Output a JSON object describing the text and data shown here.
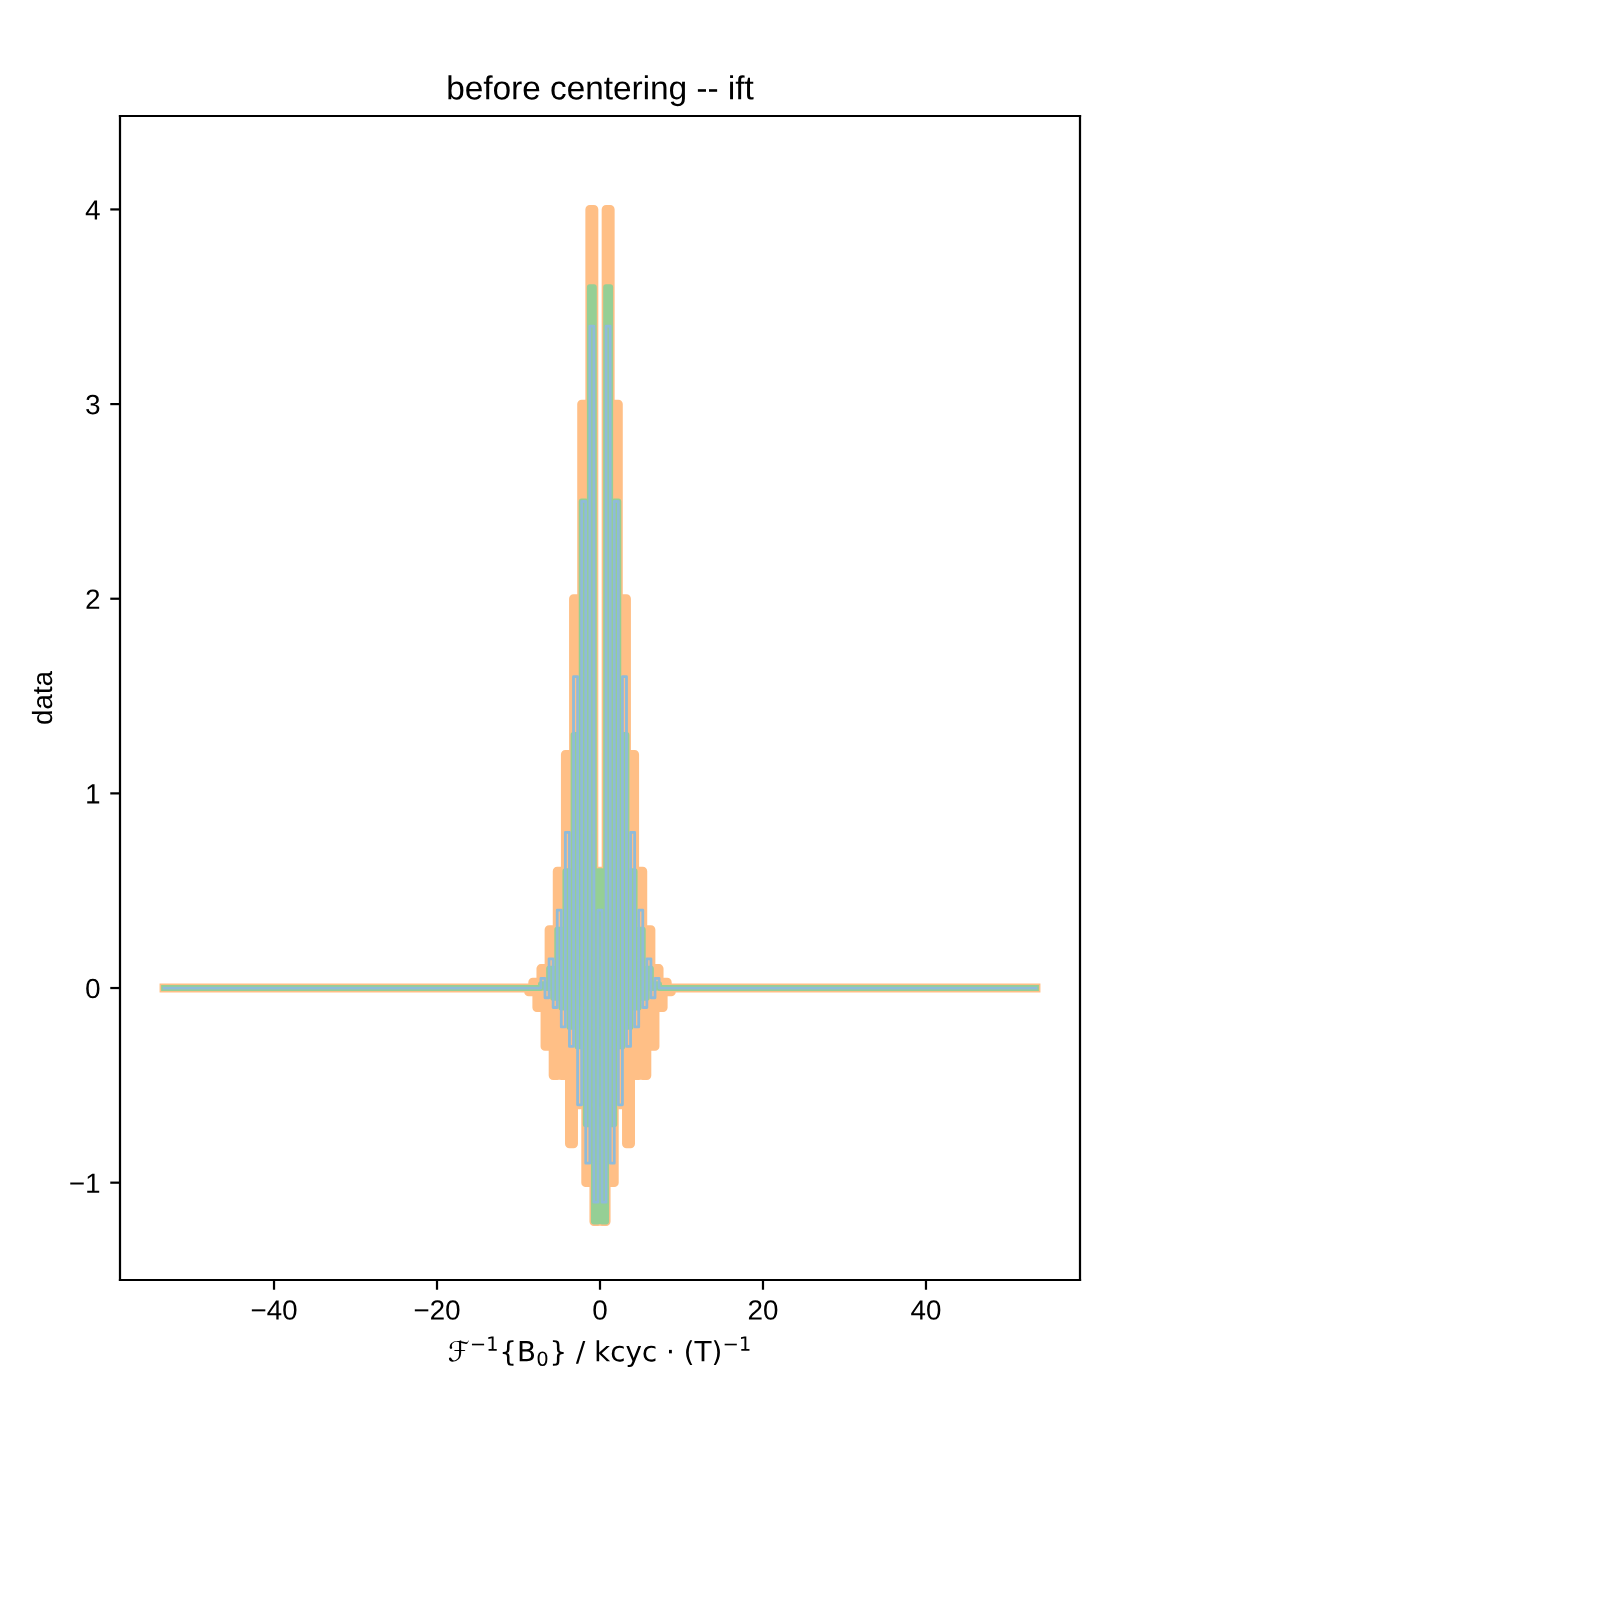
{
  "chart_data": {
    "type": "step",
    "title": "before centering -- ift",
    "xlabel": "ℱ$^{−1}${B$_{0}$} / kcyc · (T)$^{−1}$",
    "ylabel": "data",
    "x": [
      -53.5,
      -9,
      -8.5,
      -8,
      -7.5,
      -7,
      -6.5,
      -6,
      -5.5,
      -5,
      -4.5,
      -4,
      -3.5,
      -3,
      -2.5,
      -2,
      -1.5,
      -1,
      -0.5,
      0,
      0.5,
      1,
      1.5,
      2,
      2.5,
      3,
      3.5,
      4,
      4.5,
      5,
      5.5,
      6,
      6.5,
      7,
      7.5,
      8,
      8.5,
      9,
      53.5
    ],
    "series": [
      {
        "color": "#8fbbd9",
        "values": [
          0,
          0,
          0,
          0,
          0,
          0.05,
          -0.05,
          0.15,
          -0.1,
          0.4,
          -0.2,
          0.8,
          -0.3,
          1.6,
          -0.6,
          2.5,
          -0.9,
          3.4,
          -1.1,
          0.4,
          -1.1,
          3.4,
          -0.9,
          2.5,
          -0.6,
          1.6,
          -0.3,
          0.8,
          -0.2,
          0.4,
          -0.1,
          0.15,
          -0.05,
          0.05,
          0,
          0,
          0,
          0,
          0
        ]
      },
      {
        "color": "#ffbf86",
        "values": [
          0,
          0,
          -0.02,
          0.03,
          -0.1,
          0.1,
          -0.3,
          0.3,
          -0.45,
          0.6,
          -0.45,
          1.2,
          -0.8,
          2.0,
          -0.6,
          3.0,
          -1.0,
          4.0,
          -1.2,
          0.6,
          -1.2,
          4.0,
          -1.0,
          3.0,
          -0.6,
          2.0,
          -0.8,
          1.2,
          -0.45,
          0.6,
          -0.45,
          0.3,
          -0.3,
          0.1,
          -0.1,
          0.03,
          -0.02,
          0,
          0
        ]
      },
      {
        "color": "#95cf95",
        "values": [
          0,
          0,
          0,
          0,
          0,
          0.02,
          0,
          0.1,
          -0.05,
          0.3,
          -0.1,
          0.6,
          -0.2,
          1.3,
          -0.3,
          2.5,
          -0.7,
          3.6,
          -1.2,
          0.6,
          -1.2,
          3.6,
          -0.7,
          2.5,
          -0.3,
          1.3,
          -0.2,
          0.6,
          -0.1,
          0.3,
          -0.05,
          0.1,
          0,
          0.02,
          0,
          0,
          0,
          0,
          0
        ]
      }
    ],
    "xlim": [
      -58.9,
      58.9
    ],
    "ylim": [
      -1.5,
      4.48
    ],
    "xticks": [
      {
        "value": -40,
        "label": "−40"
      },
      {
        "value": -20,
        "label": "−20"
      },
      0,
      20,
      40
    ],
    "yticks": [
      {
        "value": -1,
        "label": "−1"
      },
      0,
      1,
      2,
      3,
      4
    ]
  }
}
